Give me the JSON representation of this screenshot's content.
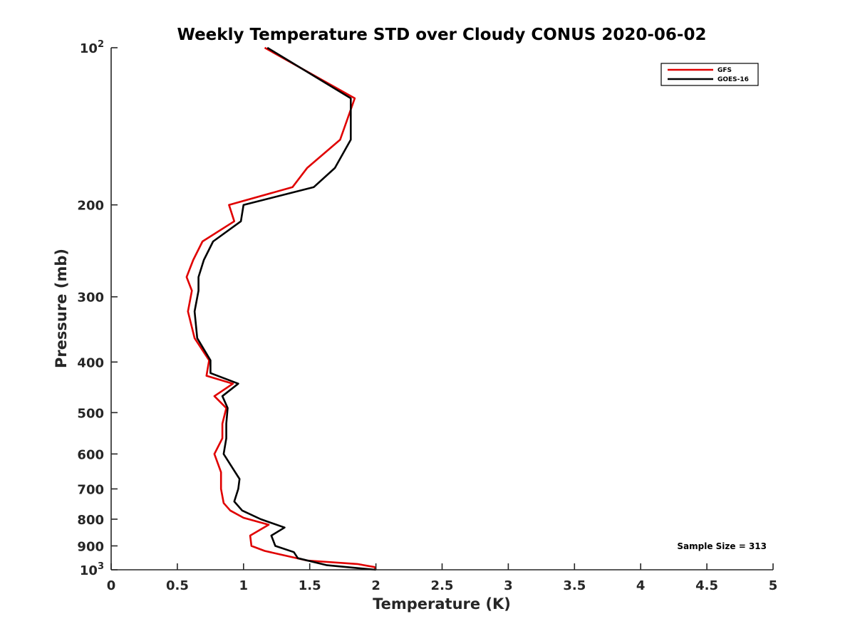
{
  "chart_data": {
    "type": "line",
    "title": "Weekly Temperature STD over Cloudy CONUS 2020-06-02",
    "xlabel": "Temperature (K)",
    "ylabel": "Pressure (mb)",
    "xlim": [
      0,
      5
    ],
    "ylim": [
      100,
      1000
    ],
    "y_scale": "log",
    "y_reversed": true,
    "x_ticks": [
      {
        "value": 0,
        "label": "0"
      },
      {
        "value": 0.5,
        "label": "0.5"
      },
      {
        "value": 1,
        "label": "1"
      },
      {
        "value": 1.5,
        "label": "1.5"
      },
      {
        "value": 2,
        "label": "2"
      },
      {
        "value": 2.5,
        "label": "2.5"
      },
      {
        "value": 3,
        "label": "3"
      },
      {
        "value": 3.5,
        "label": "3.5"
      },
      {
        "value": 4,
        "label": "4"
      },
      {
        "value": 4.5,
        "label": "4.5"
      },
      {
        "value": 5,
        "label": "5"
      }
    ],
    "y_ticks": [
      {
        "value": 100,
        "base": "10",
        "exp": "2"
      },
      {
        "value": 200,
        "label": "200"
      },
      {
        "value": 300,
        "label": "300"
      },
      {
        "value": 400,
        "label": "400"
      },
      {
        "value": 500,
        "label": "500"
      },
      {
        "value": 600,
        "label": "600"
      },
      {
        "value": 700,
        "label": "700"
      },
      {
        "value": 800,
        "label": "800"
      },
      {
        "value": 900,
        "label": "900"
      },
      {
        "value": 1000,
        "base": "10",
        "exp": "3"
      }
    ],
    "grid": false,
    "legend_position": "top-right",
    "annotation": "Sample Size = 313",
    "series": [
      {
        "name": "GFS",
        "color": "#e00000",
        "points": [
          [
            1.16,
            100
          ],
          [
            1.84,
            125
          ],
          [
            1.73,
            150
          ],
          [
            1.48,
            170
          ],
          [
            1.37,
            185
          ],
          [
            0.89,
            200
          ],
          [
            0.93,
            215
          ],
          [
            0.69,
            235
          ],
          [
            0.62,
            255
          ],
          [
            0.57,
            275
          ],
          [
            0.61,
            292
          ],
          [
            0.58,
            320
          ],
          [
            0.63,
            360
          ],
          [
            0.74,
            397
          ],
          [
            0.72,
            425
          ],
          [
            0.92,
            440
          ],
          [
            0.78,
            465
          ],
          [
            0.87,
            490
          ],
          [
            0.84,
            525
          ],
          [
            0.84,
            560
          ],
          [
            0.78,
            600
          ],
          [
            0.83,
            650
          ],
          [
            0.83,
            700
          ],
          [
            0.85,
            745
          ],
          [
            0.9,
            770
          ],
          [
            1.0,
            795
          ],
          [
            1.19,
            820
          ],
          [
            1.05,
            860
          ],
          [
            1.06,
            900
          ],
          [
            1.16,
            920
          ],
          [
            1.48,
            960
          ],
          [
            1.86,
            975
          ],
          [
            1.99,
            988
          ],
          [
            2.0,
            1000
          ]
        ]
      },
      {
        "name": "GOES-16",
        "color": "#000000",
        "points": [
          [
            1.18,
            100
          ],
          [
            1.81,
            125
          ],
          [
            1.81,
            150
          ],
          [
            1.69,
            170
          ],
          [
            1.53,
            185
          ],
          [
            1.0,
            200
          ],
          [
            0.98,
            215
          ],
          [
            0.77,
            235
          ],
          [
            0.7,
            255
          ],
          [
            0.66,
            275
          ],
          [
            0.66,
            292
          ],
          [
            0.63,
            320
          ],
          [
            0.65,
            360
          ],
          [
            0.75,
            397
          ],
          [
            0.75,
            420
          ],
          [
            0.96,
            440
          ],
          [
            0.84,
            465
          ],
          [
            0.88,
            490
          ],
          [
            0.87,
            525
          ],
          [
            0.87,
            560
          ],
          [
            0.85,
            600
          ],
          [
            0.92,
            640
          ],
          [
            0.97,
            670
          ],
          [
            0.96,
            700
          ],
          [
            0.93,
            740
          ],
          [
            0.99,
            770
          ],
          [
            1.13,
            800
          ],
          [
            1.31,
            830
          ],
          [
            1.21,
            860
          ],
          [
            1.24,
            900
          ],
          [
            1.38,
            925
          ],
          [
            1.41,
            950
          ],
          [
            1.63,
            980
          ],
          [
            2.0,
            1000
          ]
        ]
      }
    ]
  }
}
